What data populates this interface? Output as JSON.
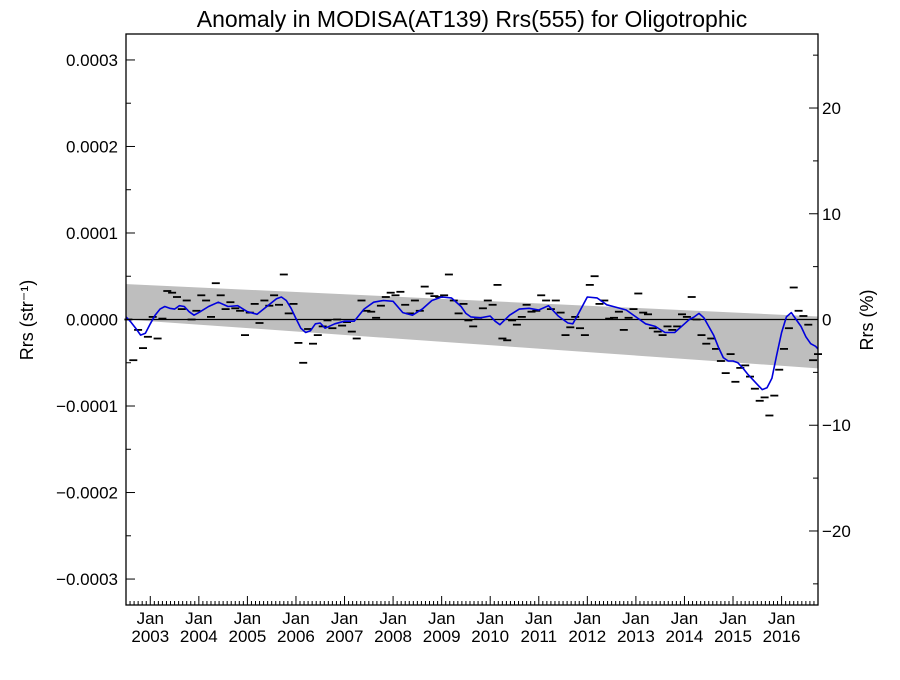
{
  "chart_data": {
    "type": "line",
    "title": "Anomaly in MODISA(AT139) Rrs(555) for Oligotrophic",
    "ylabel_left": "Rrs (str⁻¹)",
    "ylabel_right": "Rrs (%)",
    "xlim": [
      2002.5,
      2016.75
    ],
    "ylim": [
      -0.00033,
      0.00033
    ],
    "y2lim": [
      -27,
      27
    ],
    "left_ticks": [
      {
        "value": 0.0003,
        "label": "0.0003"
      },
      {
        "value": 0.0002,
        "label": "0.0002"
      },
      {
        "value": 0.0001,
        "label": "0.0001"
      },
      {
        "value": 0.0,
        "label": "0.0000"
      },
      {
        "value": -0.0001,
        "label": "−0.0001"
      },
      {
        "value": -0.0002,
        "label": "−0.0002"
      },
      {
        "value": -0.0003,
        "label": "−0.0003"
      }
    ],
    "right_ticks": [
      {
        "value": 20,
        "label": "20"
      },
      {
        "value": 10,
        "label": "10"
      },
      {
        "value": 0,
        "label": "0"
      },
      {
        "value": -10,
        "label": "−10"
      },
      {
        "value": -20,
        "label": "−20"
      }
    ],
    "x_ticks": [
      {
        "value": 2003.0,
        "month": "Jan",
        "year": "2003"
      },
      {
        "value": 2004.0,
        "month": "Jan",
        "year": "2004"
      },
      {
        "value": 2005.0,
        "month": "Jan",
        "year": "2005"
      },
      {
        "value": 2006.0,
        "month": "Jan",
        "year": "2006"
      },
      {
        "value": 2007.0,
        "month": "Jan",
        "year": "2007"
      },
      {
        "value": 2008.0,
        "month": "Jan",
        "year": "2008"
      },
      {
        "value": 2009.0,
        "month": "Jan",
        "year": "2009"
      },
      {
        "value": 2010.0,
        "month": "Jan",
        "year": "2010"
      },
      {
        "value": 2011.0,
        "month": "Jan",
        "year": "2011"
      },
      {
        "value": 2012.0,
        "month": "Jan",
        "year": "2012"
      },
      {
        "value": 2013.0,
        "month": "Jan",
        "year": "2013"
      },
      {
        "value": 2014.0,
        "month": "Jan",
        "year": "2014"
      },
      {
        "value": 2015.0,
        "month": "Jan",
        "year": "2015"
      },
      {
        "value": 2016.0,
        "month": "Jan",
        "year": "2016"
      }
    ],
    "reference_line": 0.0,
    "trend_band": {
      "x": [
        2002.5,
        2016.75
      ],
      "upper": [
        4.1e-05,
        3.5e-06
      ],
      "lower": [
        0.0,
        -5.65e-05
      ],
      "color": "#bebebe"
    },
    "series": [
      {
        "style": "line",
        "color": "#0000dd",
        "x": [
          2002.5,
          2002.6,
          2002.7,
          2002.8,
          2002.9,
          2003.0,
          2003.1,
          2003.2,
          2003.3,
          2003.4,
          2003.5,
          2003.6,
          2003.7,
          2003.8,
          2003.9,
          2004.0,
          2004.2,
          2004.4,
          2004.6,
          2004.8,
          2005.0,
          2005.2,
          2005.4,
          2005.6,
          2005.7,
          2005.8,
          2005.9,
          2006.0,
          2006.1,
          2006.2,
          2006.3,
          2006.4,
          2006.5,
          2006.6,
          2006.8,
          2007.0,
          2007.2,
          2007.4,
          2007.6,
          2007.8,
          2008.0,
          2008.2,
          2008.4,
          2008.6,
          2008.8,
          2009.0,
          2009.2,
          2009.4,
          2009.5,
          2009.6,
          2009.8,
          2010.0,
          2010.1,
          2010.2,
          2010.4,
          2010.6,
          2010.8,
          2011.0,
          2011.2,
          2011.4,
          2011.6,
          2011.7,
          2011.8,
          2012.0,
          2012.2,
          2012.4,
          2012.6,
          2012.8,
          2013.0,
          2013.2,
          2013.4,
          2013.6,
          2013.8,
          2014.0,
          2014.1,
          2014.2,
          2014.3,
          2014.4,
          2014.5,
          2014.6,
          2014.7,
          2014.8,
          2014.9,
          2015.0,
          2015.1,
          2015.2,
          2015.3,
          2015.4,
          2015.5,
          2015.6,
          2015.7,
          2015.8,
          2015.9,
          2016.0,
          2016.1,
          2016.2,
          2016.3,
          2016.4,
          2016.5,
          2016.6,
          2016.7,
          2016.75
        ],
        "y": [
          3e-06,
          -3e-06,
          -1e-05,
          -1.8e-05,
          -1.6e-05,
          -5e-06,
          5e-06,
          1.2e-05,
          1.5e-05,
          1.3e-05,
          1.2e-05,
          1.6e-05,
          1.5e-05,
          9e-06,
          5e-06,
          8e-06,
          1.5e-05,
          2e-05,
          1.5e-05,
          1.6e-05,
          9e-06,
          6e-06,
          1.5e-05,
          2.4e-05,
          2.6e-05,
          2.2e-05,
          1.3e-05,
          1e-06,
          -1e-05,
          -1.5e-05,
          -1.3e-05,
          -5e-06,
          -4e-06,
          -1e-05,
          -5e-06,
          -2e-06,
          -2e-06,
          1.2e-05,
          2e-05,
          2.2e-05,
          2.1e-05,
          8e-06,
          5e-06,
          1.2e-05,
          2.2e-05,
          2.6e-05,
          2.5e-05,
          1.5e-05,
          7e-06,
          3e-06,
          2e-06,
          4e-06,
          -2e-06,
          -6e-06,
          5e-06,
          1.2e-05,
          1.3e-05,
          1.1e-05,
          1.6e-05,
          4e-06,
          -4e-06,
          -5e-06,
          5e-06,
          2.6e-05,
          2.5e-05,
          1.7e-05,
          1.4e-05,
          1.1e-05,
          3e-06,
          -5e-06,
          -8e-06,
          -1.5e-05,
          -1.5e-05,
          -5e-06,
          0.0,
          3e-06,
          7e-06,
          2e-06,
          -8e-06,
          -1.8e-05,
          -3.2e-05,
          -4.4e-05,
          -4.8e-05,
          -4.8e-05,
          -5e-05,
          -5.6e-05,
          -6.3e-05,
          -6.9e-05,
          -7.5e-05,
          -8.1e-05,
          -7.9e-05,
          -6.8e-05,
          -4.1e-05,
          -1.5e-05,
          3e-06,
          8e-06,
          0.0,
          -8e-06,
          -2e-05,
          -2.8e-05,
          -3.1e-05,
          -3.4e-05
        ]
      },
      {
        "style": "dash-markers",
        "color": "#000000",
        "x": [
          2002.55,
          2002.65,
          2002.75,
          2002.85,
          2002.95,
          2003.05,
          2003.15,
          2003.25,
          2003.35,
          2003.45,
          2003.55,
          2003.65,
          2003.75,
          2003.85,
          2003.95,
          2004.05,
          2004.15,
          2004.25,
          2004.35,
          2004.45,
          2004.55,
          2004.65,
          2004.75,
          2004.85,
          2004.95,
          2005.05,
          2005.15,
          2005.25,
          2005.35,
          2005.45,
          2005.55,
          2005.65,
          2005.75,
          2005.85,
          2005.95,
          2006.05,
          2006.15,
          2006.25,
          2006.35,
          2006.45,
          2006.55,
          2006.65,
          2006.75,
          2006.85,
          2006.95,
          2007.05,
          2007.15,
          2007.25,
          2007.35,
          2007.45,
          2007.55,
          2007.65,
          2007.75,
          2007.85,
          2007.95,
          2008.05,
          2008.15,
          2008.25,
          2008.35,
          2008.45,
          2008.55,
          2008.65,
          2008.75,
          2008.85,
          2008.95,
          2009.05,
          2009.15,
          2009.25,
          2009.35,
          2009.45,
          2009.55,
          2009.65,
          2009.75,
          2009.85,
          2009.95,
          2010.05,
          2010.15,
          2010.25,
          2010.35,
          2010.45,
          2010.55,
          2010.65,
          2010.75,
          2010.85,
          2010.95,
          2011.05,
          2011.15,
          2011.25,
          2011.35,
          2011.45,
          2011.55,
          2011.65,
          2011.75,
          2011.85,
          2011.95,
          2012.05,
          2012.15,
          2012.25,
          2012.35,
          2012.45,
          2012.55,
          2012.65,
          2012.75,
          2012.85,
          2012.95,
          2013.05,
          2013.15,
          2013.25,
          2013.35,
          2013.45,
          2013.55,
          2013.65,
          2013.75,
          2013.85,
          2013.95,
          2014.05,
          2014.15,
          2014.25,
          2014.35,
          2014.45,
          2014.55,
          2014.65,
          2014.75,
          2014.85,
          2014.95,
          2015.05,
          2015.15,
          2015.25,
          2015.35,
          2015.45,
          2015.55,
          2015.65,
          2015.75,
          2015.85,
          2015.95,
          2016.05,
          2016.15,
          2016.25,
          2016.35,
          2016.45,
          2016.55,
          2016.65,
          2016.75
        ],
        "y": [
          0.0,
          -4.7e-05,
          -1.2e-05,
          -3.3e-05,
          -2e-05,
          3e-06,
          -2.2e-05,
          1e-06,
          3.3e-05,
          3.1e-05,
          2.6e-05,
          1.2e-05,
          2.2e-05,
          0.0,
          1e-05,
          2.8e-05,
          2.2e-05,
          3e-06,
          4.2e-05,
          2.8e-05,
          1.2e-05,
          2e-05,
          1.3e-05,
          1e-05,
          -1.8e-05,
          8e-06,
          1.8e-05,
          -4e-06,
          2.2e-05,
          1.6e-05,
          2.8e-05,
          1.7e-05,
          5.2e-05,
          7e-06,
          1.8e-05,
          -2.7e-05,
          -5e-05,
          -1.1e-05,
          -2.8e-05,
          -1.8e-05,
          -8e-06,
          -1e-06,
          -1e-05,
          0.0,
          -7e-06,
          -3e-06,
          -1.4e-05,
          -2.2e-05,
          2.2e-05,
          1e-05,
          9e-06,
          2e-06,
          1.6e-05,
          2.6e-05,
          3.1e-05,
          2.8e-05,
          3.2e-05,
          1.7e-05,
          7e-06,
          2.2e-05,
          1e-05,
          3.8e-05,
          3e-05,
          2.7e-05,
          2.6e-05,
          2.8e-05,
          5.2e-05,
          2.2e-05,
          7e-06,
          1.8e-05,
          -1e-06,
          -8e-06,
          2e-06,
          1.3e-05,
          2.2e-05,
          1.7e-05,
          4e-05,
          -2.2e-05,
          -2.4e-05,
          -1e-06,
          -6e-06,
          3e-06,
          1.7e-05,
          9e-06,
          1e-05,
          2.8e-05,
          2.2e-05,
          1.2e-05,
          2.2e-05,
          8e-06,
          -1.8e-05,
          -9e-06,
          3e-06,
          -1e-05,
          -1.8e-05,
          4e-05,
          5e-05,
          1.8e-05,
          2.2e-05,
          1e-06,
          2e-06,
          9e-06,
          -1.2e-05,
          2e-06,
          1.2e-05,
          3e-05,
          8e-06,
          6e-06,
          -1e-05,
          -1.4e-05,
          -1.8e-05,
          -8e-06,
          -1.2e-05,
          -8e-06,
          6e-06,
          3e-06,
          2.6e-05,
          0.0,
          -1.8e-05,
          -2.8e-05,
          -2.2e-05,
          -3.4e-05,
          -4.8e-05,
          -6.2e-05,
          -4e-05,
          -7.2e-05,
          -5.6e-05,
          -5.3e-05,
          -6.6e-05,
          -8e-05,
          -9.4e-05,
          -9e-05,
          -0.000111,
          -8.8e-05,
          -5.8e-05,
          -3.4e-05,
          -1e-05,
          3.7e-05,
          1e-05,
          4e-06,
          -6e-06,
          -4.7e-05,
          -4e-05
        ]
      }
    ]
  }
}
